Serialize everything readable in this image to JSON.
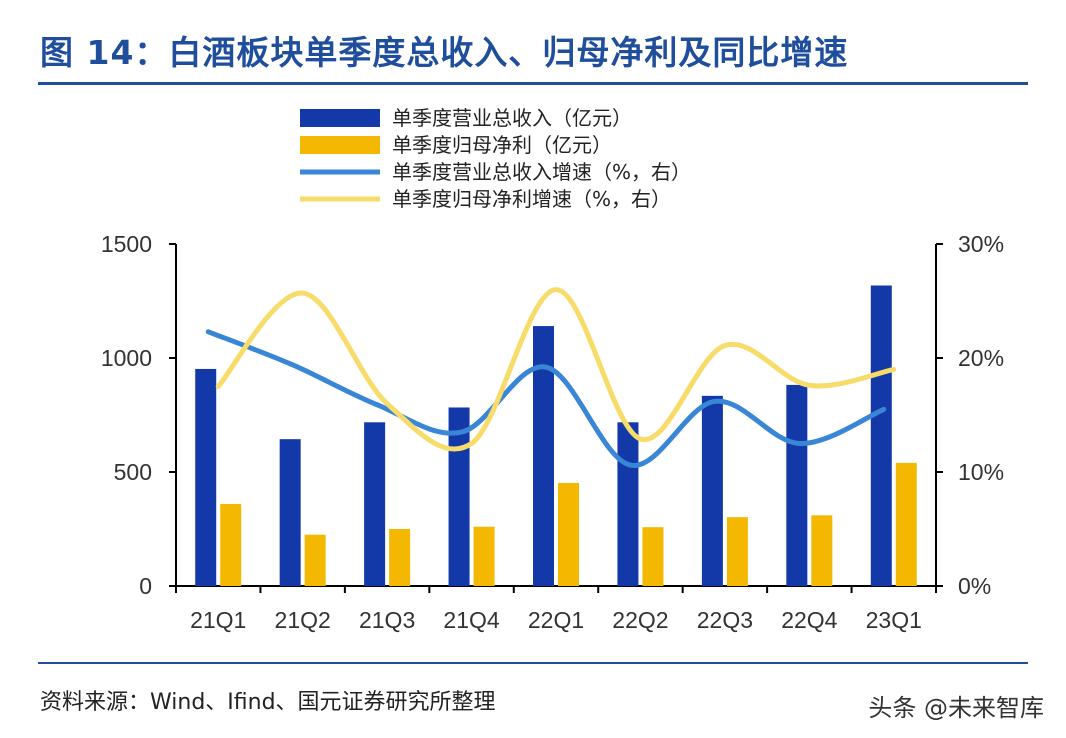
{
  "title": "图 14：白酒板块单季度总收入、归母净利及同比增速",
  "source": "资料来源：Wind、Ifind、国元证券研究所整理",
  "watermark": "头条 @未来智库",
  "colors": {
    "revenue": "#1338a8",
    "profit": "#f5b800",
    "revenue_growth": "#3a86d6",
    "profit_growth": "#f7dc6a",
    "title": "#1f4e9c"
  },
  "chart_data": {
    "type": "bar",
    "categories": [
      "21Q1",
      "21Q2",
      "21Q3",
      "21Q4",
      "22Q1",
      "22Q2",
      "22Q3",
      "22Q4",
      "23Q1"
    ],
    "series": [
      {
        "name": "单季度营业总收入（亿元）",
        "kind": "bar",
        "axis": "left",
        "values": [
          952,
          644,
          718,
          783,
          1140,
          718,
          834,
          882,
          1318
        ]
      },
      {
        "name": "单季度归母净利（亿元）",
        "kind": "bar",
        "axis": "left",
        "values": [
          360,
          225,
          250,
          260,
          452,
          258,
          302,
          310,
          540
        ]
      },
      {
        "name": "单季度营业总收入增速（%，右）",
        "kind": "line",
        "axis": "right",
        "values": [
          22.3,
          19.4,
          15.9,
          13.5,
          19.2,
          10.6,
          16.2,
          12.5,
          15.5
        ]
      },
      {
        "name": "单季度归母净利增速（%，右）",
        "kind": "line",
        "axis": "right",
        "values": [
          17.5,
          25.7,
          16.0,
          12.5,
          26.0,
          12.9,
          21.1,
          17.6,
          19.0
        ]
      }
    ],
    "y_left": {
      "range": [
        0,
        1500
      ],
      "ticks": [
        "0",
        "500",
        "1000",
        "1500"
      ]
    },
    "y_right": {
      "range": [
        0,
        30
      ],
      "ticks": [
        "0%",
        "10%",
        "20%",
        "30%"
      ]
    },
    "legend_position": "top",
    "grid": false
  }
}
